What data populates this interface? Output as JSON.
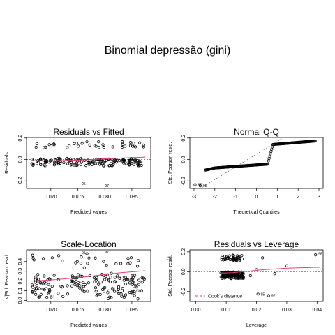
{
  "page": {
    "title": "Binomial depressão (gini)"
  },
  "colors": {
    "smooth": "#e0407a",
    "points": "#000000",
    "reference": "#555555",
    "cook": "#e0407a"
  },
  "chart_data": [
    {
      "type": "scatter",
      "title": "Residuals vs Fitted",
      "xlabel": "Predicted values",
      "ylabel": "Residuals",
      "xlim": [
        0.0655,
        0.0885
      ],
      "ylim": [
        -0.27,
        0.205
      ],
      "xticks": [
        0.07,
        0.075,
        0.08,
        0.085
      ],
      "xtick_labels": [
        "0.070",
        "0.075",
        "0.080",
        "0.085"
      ],
      "yticks": [
        -0.2,
        0.0,
        0.2
      ],
      "ytick_labels": [
        "-0.2",
        "0.0",
        "0.2"
      ],
      "zero_line": true,
      "smooth": [
        [
          0.0665,
          -0.013
        ],
        [
          0.071,
          -0.012
        ],
        [
          0.075,
          -0.006
        ],
        [
          0.079,
          0.003
        ],
        [
          0.083,
          0.013
        ],
        [
          0.0875,
          0.022
        ]
      ],
      "annotations": [
        {
          "label": "95",
          "x": 0.0752,
          "y": -0.225
        },
        {
          "label": "97",
          "x": 0.0795,
          "y": -0.245
        }
      ]
    },
    {
      "type": "scatter",
      "title": "Normal Q-Q",
      "xlabel": "Theoretical Quantiles",
      "ylabel": "Std. Pearson resid.",
      "xlim": [
        -3.2,
        3.2
      ],
      "ylim": [
        -0.27,
        0.205
      ],
      "xticks": [
        -3,
        -2,
        -1,
        0,
        1,
        2,
        3
      ],
      "xtick_labels": [
        "-3",
        "-2",
        "-1",
        "0",
        "1",
        "2",
        "3"
      ],
      "yticks": [
        -0.2,
        0.0,
        0.2
      ],
      "ytick_labels": [
        "-0.2",
        "0.0",
        "0.2"
      ],
      "reference_line": [
        [
          -3.2,
          -0.33
        ],
        [
          3.2,
          0.43
        ]
      ],
      "annotations": [
        {
          "label": "95",
          "x": -2.7,
          "y": -0.245
        },
        {
          "label": "97",
          "x": -2.95,
          "y": -0.235
        }
      ]
    },
    {
      "type": "scatter",
      "title": "Scale-Location",
      "xlabel": "Predicted values",
      "ylabel": "√|Std. Pearson resid.|",
      "xlim": [
        0.0655,
        0.0885
      ],
      "ylim": [
        -0.01,
        0.52
      ],
      "xticks": [
        0.07,
        0.075,
        0.08,
        0.085
      ],
      "xtick_labels": [
        "0.070",
        "0.075",
        "0.080",
        "0.085"
      ],
      "yticks": [
        0.0,
        0.1,
        0.2,
        0.3,
        0.4
      ],
      "ytick_labels": [
        "0.0",
        "0.1",
        "0.2",
        "0.3",
        "0.4"
      ],
      "smooth": [
        [
          0.0665,
          0.2
        ],
        [
          0.071,
          0.215
        ],
        [
          0.075,
          0.235
        ],
        [
          0.079,
          0.26
        ],
        [
          0.083,
          0.285
        ],
        [
          0.0875,
          0.305
        ]
      ],
      "annotations": [
        {
          "label": "95",
          "x": 0.0752,
          "y": 0.49
        },
        {
          "label": "97",
          "x": 0.0795,
          "y": 0.5
        }
      ]
    },
    {
      "type": "scatter",
      "title": "Residuals vs Leverage",
      "xlabel": "Leverage",
      "ylabel": "Std. Pearson resid.",
      "xlim": [
        -0.002,
        0.042
      ],
      "ylim": [
        -0.3,
        0.22
      ],
      "xticks": [
        0.0,
        0.01,
        0.02,
        0.03,
        0.04
      ],
      "xtick_labels": [
        "0.00",
        "0.01",
        "0.02",
        "0.03",
        "0.04"
      ],
      "yticks": [
        -0.2,
        0.0,
        0.2
      ],
      "ytick_labels": [
        "-0.2",
        "0.0",
        "0.2"
      ],
      "zero_line": true,
      "smooth": [
        [
          0.008,
          -0.015
        ],
        [
          0.012,
          -0.01
        ],
        [
          0.016,
          0.0
        ],
        [
          0.022,
          0.02
        ],
        [
          0.03,
          0.035
        ],
        [
          0.041,
          0.045
        ]
      ],
      "legend": {
        "label": "Cook's distance",
        "position": "bottom-left"
      },
      "annotations": [
        {
          "label": "98",
          "x": 0.0395,
          "y": 0.18
        },
        {
          "label": "95",
          "x": 0.0205,
          "y": -0.225
        },
        {
          "label": "97",
          "x": 0.024,
          "y": -0.24
        }
      ]
    }
  ]
}
